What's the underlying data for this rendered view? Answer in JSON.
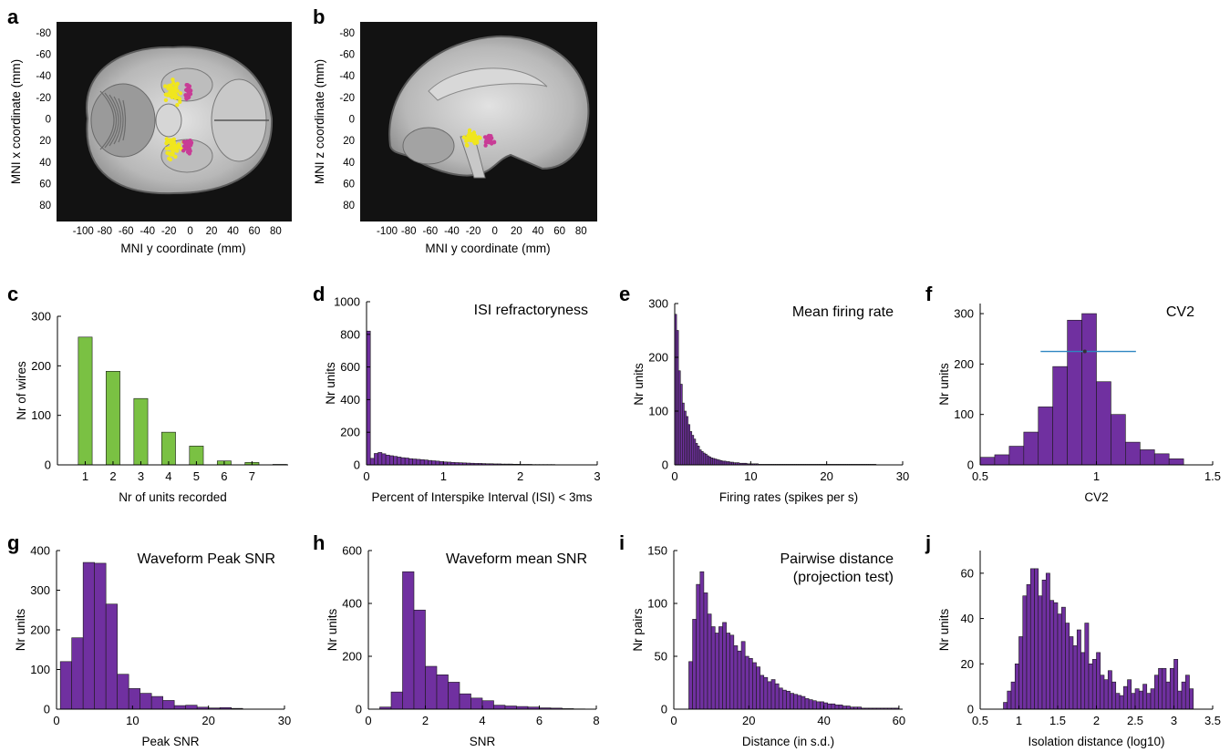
{
  "panel_letters": [
    "a",
    "b",
    "c",
    "d",
    "e",
    "f",
    "g",
    "h",
    "i",
    "j"
  ],
  "colors": {
    "bar_green": "#7ac143",
    "bar_purple": "#7030a0",
    "cv_line": "#2e86c1",
    "mri_bg": "#121212",
    "pink": "#c83c96",
    "yellow": "#f0e61e"
  },
  "chart_data": [
    {
      "panel": "a",
      "type": "scatter",
      "xlabel": "MNI y coordinate (mm)",
      "ylabel": "MNI x coordinate (mm)",
      "xticks": [
        -100,
        -80,
        -60,
        -40,
        -20,
        0,
        20,
        40,
        60,
        80
      ],
      "yticks": [
        -80,
        -60,
        -40,
        -20,
        0,
        20,
        40,
        60,
        80
      ],
      "xlim": [
        -125,
        95
      ],
      "ylim": [
        -90,
        95
      ],
      "y_reversed": true,
      "image": "axial brain MRI slice",
      "series": [
        {
          "color": "yellow",
          "clusters": [
            {
              "x": -15,
              "y": -25,
              "sx": 6,
              "sy": 8
            },
            {
              "x": -15,
              "y": 27,
              "sx": 6,
              "sy": 8
            }
          ]
        },
        {
          "color": "pink",
          "clusters": [
            {
              "x": -2,
              "y": -25,
              "sx": 3,
              "sy": 5
            },
            {
              "x": -2,
              "y": 25,
              "sx": 3,
              "sy": 5
            }
          ]
        }
      ]
    },
    {
      "panel": "b",
      "type": "scatter",
      "xlabel": "MNI y coordinate (mm)",
      "ylabel": "MNI z coordinate (mm)",
      "xticks": [
        -100,
        -80,
        -60,
        -40,
        -20,
        0,
        20,
        40,
        60,
        80
      ],
      "yticks": [
        -80,
        -60,
        -40,
        -20,
        0,
        20,
        40,
        60,
        80
      ],
      "xlim": [
        -125,
        95
      ],
      "ylim": [
        -90,
        95
      ],
      "y_reversed": true,
      "image": "sagittal brain MRI slice",
      "series": [
        {
          "color": "yellow",
          "clusters": [
            {
              "x": -20,
              "y": 18,
              "sx": 6,
              "sy": 5
            }
          ]
        },
        {
          "color": "pink",
          "clusters": [
            {
              "x": -5,
              "y": 20,
              "sx": 3,
              "sy": 4
            }
          ]
        }
      ]
    },
    {
      "panel": "c",
      "type": "bar",
      "xlabel": "Nr of units recorded",
      "ylabel": "Nr of wires",
      "categories": [
        1,
        2,
        3,
        4,
        5,
        6,
        7,
        8
      ],
      "xticks": [
        1,
        2,
        3,
        4,
        5,
        6,
        7
      ],
      "values": [
        258,
        189,
        134,
        66,
        38,
        8,
        5,
        1
      ],
      "xlim": [
        0,
        8.3
      ],
      "ylim": [
        0,
        300
      ],
      "yticks": [
        0,
        100,
        200,
        300
      ],
      "color": "bar_green"
    },
    {
      "panel": "d",
      "type": "bar",
      "title": "ISI refractoryness",
      "xlabel": "Percent of Interspike Interval (ISI) < 3ms",
      "ylabel": "Nr units",
      "bin_start": 0,
      "bin_width": 0.05,
      "values": [
        820,
        40,
        70,
        76,
        68,
        60,
        56,
        52,
        48,
        44,
        42,
        38,
        36,
        34,
        32,
        30,
        27,
        25,
        23,
        20,
        18,
        17,
        15,
        14,
        13,
        12,
        11,
        10,
        9,
        9,
        8,
        7,
        7,
        6,
        6,
        5,
        5,
        5,
        4,
        4,
        3,
        3,
        3,
        2,
        2,
        2,
        2,
        2,
        2,
        1,
        1,
        1,
        1,
        1,
        1,
        1,
        1,
        1,
        1,
        1
      ],
      "xlim": [
        0,
        3
      ],
      "ylim": [
        0,
        1000
      ],
      "xticks": [
        0,
        1,
        2,
        3
      ],
      "yticks": [
        0,
        200,
        400,
        600,
        800,
        1000
      ],
      "color": "bar_purple"
    },
    {
      "panel": "e",
      "type": "bar",
      "title": "Mean firing rate",
      "xlabel": "Firing rates (spikes per s)",
      "ylabel": "Nr units",
      "bin_start": 0,
      "bin_width": 0.25,
      "values": [
        280,
        250,
        175,
        150,
        115,
        100,
        90,
        75,
        62,
        55,
        48,
        40,
        35,
        28,
        25,
        22,
        20,
        17,
        15,
        13,
        12,
        11,
        10,
        9,
        8,
        7,
        7,
        6,
        6,
        5,
        5,
        4,
        4,
        4,
        3,
        3,
        3,
        3,
        2,
        2,
        2,
        2,
        2,
        2,
        1,
        1,
        1,
        1,
        1,
        1,
        1,
        1,
        1,
        1,
        1,
        1,
        1,
        1,
        1,
        1,
        1,
        1,
        1,
        1,
        1,
        1,
        1,
        1,
        1,
        1,
        1,
        1,
        1,
        1,
        1,
        1,
        1,
        1,
        1,
        1,
        1,
        1,
        1,
        1,
        1,
        1,
        1,
        1,
        1,
        1,
        1,
        1,
        1,
        1,
        1,
        1,
        1,
        1,
        1,
        1,
        1,
        1,
        1,
        1,
        1,
        1
      ],
      "xlim": [
        0,
        30
      ],
      "ylim": [
        0,
        300
      ],
      "xticks": [
        0,
        10,
        20,
        30
      ],
      "yticks": [
        0,
        100,
        200,
        300
      ],
      "color": "bar_purple"
    },
    {
      "panel": "f",
      "type": "bar",
      "title": "CV2",
      "xlabel": "CV2",
      "ylabel": "Nr units",
      "bin_start": 0.5,
      "bin_width": 0.0625,
      "values": [
        15,
        20,
        37,
        65,
        115,
        195,
        287,
        300,
        165,
        100,
        45,
        30,
        22,
        12
      ],
      "xlim": [
        0.5,
        1.5
      ],
      "ylim": [
        0,
        320
      ],
      "xticks": [
        0.5,
        1,
        1.5
      ],
      "yticks": [
        0,
        100,
        200,
        300
      ],
      "color": "bar_purple",
      "errorbar": {
        "x_center": 0.95,
        "x_low": 0.76,
        "x_high": 1.17,
        "y": 225
      }
    },
    {
      "panel": "g",
      "type": "bar",
      "title": "Waveform Peak SNR",
      "xlabel": "Peak SNR",
      "ylabel": "Nr units",
      "bin_start": 0.5,
      "bin_width": 1.5,
      "values": [
        120,
        180,
        370,
        368,
        265,
        88,
        52,
        40,
        32,
        22,
        9,
        10,
        5,
        3,
        4,
        2
      ],
      "xlim": [
        0,
        30
      ],
      "ylim": [
        0,
        400
      ],
      "xticks": [
        0,
        10,
        20,
        30
      ],
      "yticks": [
        0,
        100,
        200,
        300,
        400
      ],
      "color": "bar_purple"
    },
    {
      "panel": "h",
      "type": "bar",
      "title": "Waveform mean SNR",
      "xlabel": "SNR",
      "ylabel": "Nr units",
      "bin_start": 0.4,
      "bin_width": 0.4,
      "values": [
        8,
        65,
        520,
        375,
        162,
        130,
        102,
        58,
        42,
        32,
        15,
        12,
        10,
        8,
        5,
        4,
        2,
        1
      ],
      "xlim": [
        0,
        8
      ],
      "ylim": [
        0,
        600
      ],
      "xticks": [
        0,
        2,
        4,
        6,
        8
      ],
      "yticks": [
        0,
        200,
        400,
        600
      ],
      "color": "bar_purple"
    },
    {
      "panel": "i",
      "type": "bar",
      "title": "Pairwise distance\n(projection test)",
      "xlabel": "Distance (in s.d.)",
      "ylabel": "Nr pairs",
      "bin_start": 4,
      "bin_width": 1,
      "values": [
        45,
        85,
        118,
        130,
        110,
        90,
        78,
        72,
        78,
        82,
        72,
        70,
        60,
        55,
        64,
        50,
        48,
        44,
        40,
        32,
        30,
        26,
        28,
        24,
        20,
        18,
        17,
        15,
        14,
        13,
        12,
        10,
        9,
        8,
        7,
        7,
        6,
        5,
        5,
        4,
        4,
        3,
        3,
        2,
        2,
        2,
        1,
        1,
        1,
        1,
        1,
        1,
        1,
        1,
        1,
        1
      ],
      "xlim": [
        0,
        61
      ],
      "ylim": [
        0,
        150
      ],
      "xticks": [
        0,
        20,
        40,
        60
      ],
      "yticks": [
        0,
        50,
        100,
        150
      ],
      "color": "bar_purple"
    },
    {
      "panel": "j",
      "type": "bar",
      "xlabel": "Isolation distance (log10)",
      "ylabel": "Nr units",
      "bin_start": 0.8,
      "bin_width": 0.05,
      "values": [
        3,
        8,
        12,
        20,
        32,
        50,
        55,
        62,
        62,
        50,
        57,
        60,
        48,
        47,
        42,
        45,
        38,
        32,
        28,
        35,
        25,
        38,
        20,
        22,
        25,
        15,
        13,
        17,
        12,
        7,
        6,
        10,
        13,
        7,
        9,
        8,
        11,
        7,
        9,
        15,
        18,
        18,
        12,
        18,
        22,
        8,
        12,
        15,
        9
      ],
      "xlim": [
        0.5,
        3.5
      ],
      "ylim": [
        0,
        70
      ],
      "xticks": [
        0.5,
        1,
        1.5,
        2,
        2.5,
        3,
        3.5
      ],
      "yticks": [
        0,
        20,
        40,
        60
      ],
      "color": "bar_purple"
    }
  ]
}
